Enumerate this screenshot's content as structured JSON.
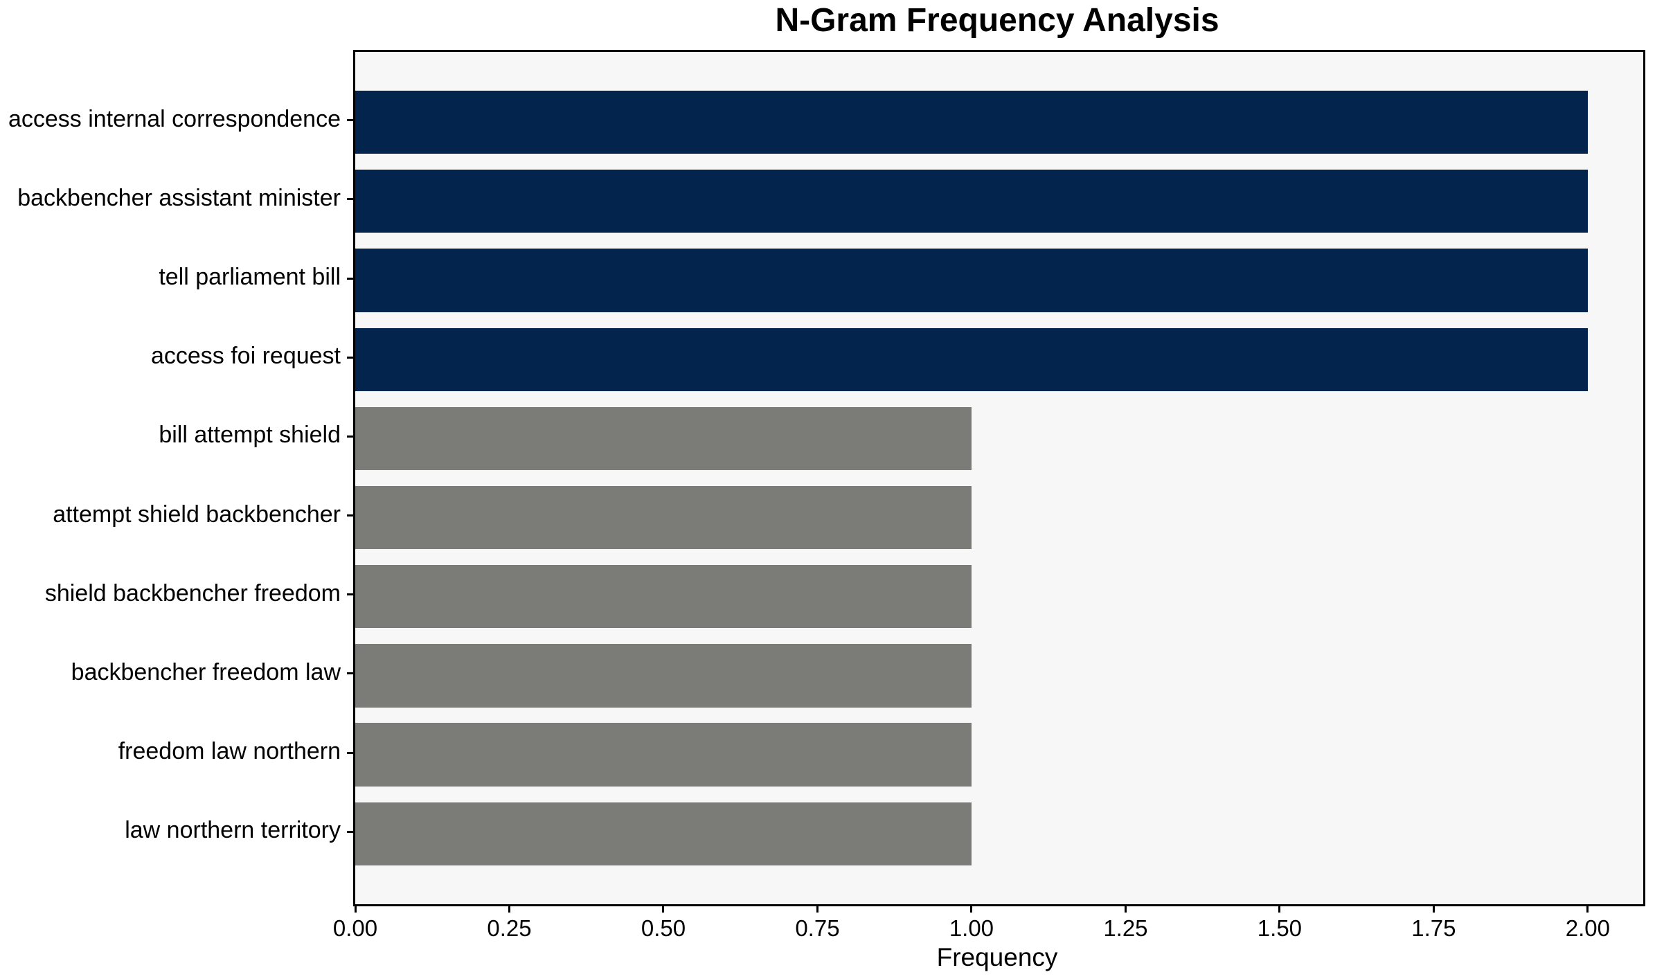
{
  "figure": {
    "background": "#ffffff",
    "plot_background": "#f7f7f8",
    "spine_color": "#000000"
  },
  "chart_data": {
    "type": "bar",
    "orientation": "horizontal",
    "title": "N-Gram Frequency Analysis",
    "xlabel": "Frequency",
    "ylabel": "",
    "categories": [
      "access internal correspondence",
      "backbencher assistant minister",
      "tell parliament bill",
      "access foi request",
      "bill attempt shield",
      "attempt shield backbencher",
      "shield backbencher freedom",
      "backbencher freedom law",
      "freedom law northern",
      "law northern territory"
    ],
    "values": [
      2,
      2,
      2,
      2,
      1,
      1,
      1,
      1,
      1,
      1
    ],
    "bar_colors": [
      "#03244d",
      "#03244d",
      "#03244d",
      "#03244d",
      "#7b7b78",
      "#7b7b78",
      "#7b7b78",
      "#7b7b78",
      "#7b7b78",
      "#7b7b78"
    ],
    "accent_color_high": "#03244d",
    "accent_color_low": "#7b7b78",
    "xlim": [
      0,
      2.09
    ],
    "xticks": [
      0,
      0.25,
      0.5,
      0.75,
      1.0,
      1.25,
      1.5,
      1.75,
      2.0
    ],
    "xtick_labels": [
      "0.00",
      "0.25",
      "0.50",
      "0.75",
      "1.00",
      "1.25",
      "1.50",
      "1.75",
      "2.00"
    ],
    "grid": false,
    "legend": null
  }
}
